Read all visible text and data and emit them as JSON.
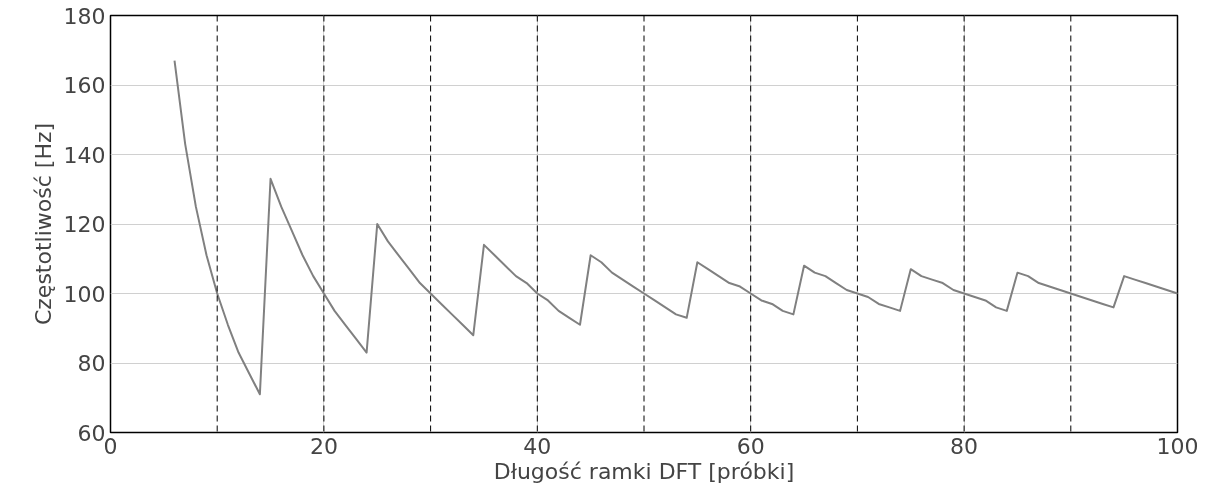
{
  "chart_data": {
    "type": "line",
    "xlabel": "Długość ramki DFT [próbki]",
    "ylabel": "Częstotliwość [Hz]",
    "x": [
      6,
      7,
      8,
      9,
      10,
      11,
      12,
      13,
      14,
      15,
      16,
      17,
      18,
      19,
      20,
      21,
      22,
      23,
      24,
      25,
      26,
      27,
      28,
      29,
      30,
      31,
      32,
      33,
      34,
      35,
      36,
      37,
      38,
      39,
      40,
      41,
      42,
      43,
      44,
      45,
      46,
      47,
      48,
      49,
      50,
      51,
      52,
      53,
      54,
      55,
      56,
      57,
      58,
      59,
      60,
      61,
      62,
      63,
      64,
      65,
      66,
      67,
      68,
      69,
      70,
      71,
      72,
      73,
      74,
      75,
      76,
      77,
      78,
      79,
      80,
      81,
      82,
      83,
      84,
      85,
      86,
      87,
      88,
      89,
      90,
      91,
      92,
      93,
      94,
      95,
      96,
      97,
      98,
      99,
      100
    ],
    "series": [
      {
        "color": "#808080",
        "values": [
          167,
          143,
          125,
          111,
          100,
          91,
          83,
          77,
          71,
          133,
          125,
          118,
          111,
          105,
          100,
          95,
          91,
          87,
          83,
          120,
          115,
          111,
          107,
          103,
          100,
          97,
          94,
          91,
          88,
          114,
          111,
          108,
          105,
          103,
          100,
          98,
          95,
          93,
          91,
          111,
          109,
          106,
          104,
          102,
          100,
          98,
          96,
          94,
          93,
          109,
          107,
          105,
          103,
          102,
          100,
          98,
          97,
          95,
          94,
          108,
          106,
          105,
          103,
          101,
          100,
          99,
          97,
          96,
          95,
          107,
          105,
          104,
          103,
          101,
          100,
          99,
          98,
          96,
          95,
          106,
          105,
          103,
          102,
          101,
          100,
          99,
          98,
          97,
          96,
          105,
          104,
          103,
          102,
          101,
          100
        ]
      }
    ],
    "xlim": [
      0,
      100
    ],
    "ylim": [
      60,
      180
    ],
    "xticks": [
      0,
      20,
      40,
      60,
      80,
      100
    ],
    "yticks": [
      60,
      80,
      100,
      120,
      140,
      160,
      180
    ],
    "grid": true,
    "marker": "none",
    "line_style": "solid",
    "ref_lines": [
      {
        "axis": "x",
        "value": 10,
        "line_style": "dashed",
        "color": "#000000"
      },
      {
        "axis": "x",
        "value": 20,
        "line_style": "dashed",
        "color": "#000000"
      },
      {
        "axis": "x",
        "value": 30,
        "line_style": "dashed",
        "color": "#000000"
      },
      {
        "axis": "x",
        "value": 40,
        "line_style": "dashed",
        "color": "#000000"
      },
      {
        "axis": "x",
        "value": 50,
        "line_style": "dashed",
        "color": "#000000"
      },
      {
        "axis": "x",
        "value": 60,
        "line_style": "dashed",
        "color": "#000000"
      },
      {
        "axis": "x",
        "value": 70,
        "line_style": "dashed",
        "color": "#000000"
      },
      {
        "axis": "x",
        "value": 80,
        "line_style": "dashed",
        "color": "#000000"
      },
      {
        "axis": "x",
        "value": 90,
        "line_style": "dashed",
        "color": "#000000"
      }
    ]
  }
}
